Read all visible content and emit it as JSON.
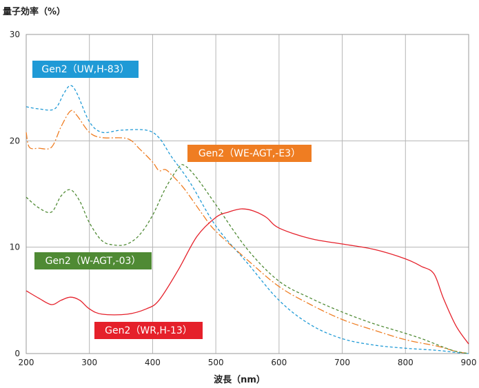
{
  "chart_data": {
    "type": "line",
    "ylabel": "量子効率（%）",
    "xlabel": "波長（nm）",
    "xlim": [
      200,
      900
    ],
    "ylim": [
      0,
      30
    ],
    "xticks": [
      200,
      300,
      400,
      500,
      600,
      700,
      800,
      900
    ],
    "yticks": [
      0,
      10,
      20,
      30
    ],
    "grid": true,
    "series": [
      {
        "name": "Gen2（UW,H-83）",
        "color": "#1f9ad6",
        "dash": "4,3",
        "x": [
          200,
          220,
          245,
          260,
          270,
          280,
          300,
          320,
          350,
          390,
          410,
          430,
          460,
          500,
          550,
          600,
          650,
          700,
          750,
          800,
          850,
          880,
          900
        ],
        "y": [
          23.2,
          23.0,
          23.0,
          24.5,
          25.2,
          24.5,
          21.8,
          20.8,
          21.0,
          21.0,
          20.3,
          18.5,
          16.0,
          12.0,
          8.5,
          5.0,
          2.7,
          1.4,
          0.8,
          0.5,
          0.3,
          0.1,
          0.0
        ]
      },
      {
        "name": "Gen2（WE-AGT,-E3）",
        "color": "#ef7d22",
        "dash": "10,3,2,3",
        "x": [
          200,
          205,
          220,
          240,
          255,
          270,
          280,
          300,
          320,
          360,
          380,
          400,
          410,
          420,
          430,
          450,
          480,
          500,
          550,
          600,
          650,
          700,
          750,
          800,
          850,
          880,
          900
        ],
        "y": [
          20.8,
          19.4,
          19.3,
          19.4,
          21.3,
          22.8,
          22.4,
          20.8,
          20.3,
          20.2,
          19.2,
          18.0,
          17.2,
          17.3,
          16.8,
          15.5,
          13.0,
          11.5,
          8.8,
          6.3,
          4.6,
          3.2,
          2.2,
          1.3,
          0.7,
          0.2,
          0.0
        ]
      },
      {
        "name": "Gen2（W-AGT,-03）",
        "color": "#4f8a34",
        "dash": "4,3",
        "x": [
          200,
          220,
          240,
          255,
          270,
          285,
          300,
          320,
          340,
          360,
          380,
          400,
          420,
          440,
          450,
          470,
          500,
          550,
          600,
          650,
          700,
          750,
          800,
          830,
          860,
          880,
          900
        ],
        "y": [
          14.7,
          13.7,
          13.3,
          14.8,
          15.4,
          14.3,
          12.3,
          10.6,
          10.2,
          10.3,
          11.2,
          13.0,
          15.5,
          17.4,
          17.7,
          16.5,
          14.0,
          9.8,
          6.8,
          5.2,
          3.9,
          2.8,
          1.9,
          1.3,
          0.6,
          0.2,
          0.0
        ]
      },
      {
        "name": "Gen2（WR,H-13）",
        "color": "#e5202a",
        "dash": "",
        "x": [
          200,
          220,
          240,
          255,
          270,
          285,
          300,
          320,
          360,
          390,
          410,
          440,
          470,
          500,
          520,
          540,
          560,
          580,
          600,
          650,
          700,
          750,
          800,
          825,
          845,
          860,
          880,
          900
        ],
        "y": [
          5.9,
          5.2,
          4.6,
          5.0,
          5.3,
          5.0,
          4.2,
          3.7,
          3.7,
          4.2,
          5.0,
          7.8,
          11.0,
          12.8,
          13.3,
          13.6,
          13.4,
          12.8,
          11.8,
          10.8,
          10.3,
          9.8,
          8.9,
          8.2,
          7.5,
          5.2,
          2.6,
          0.9
        ]
      }
    ],
    "legend_boxes": [
      {
        "label": "Gen2（UW,H-83）",
        "color": "#1f9ad6"
      },
      {
        "label": "Gen2（WE-AGT,-E3）",
        "color": "#ef7d22"
      },
      {
        "label": "Gen2（W-AGT,-03）",
        "color": "#4f8a34"
      },
      {
        "label": "Gen2（WR,H-13）",
        "color": "#e5202a"
      }
    ]
  }
}
